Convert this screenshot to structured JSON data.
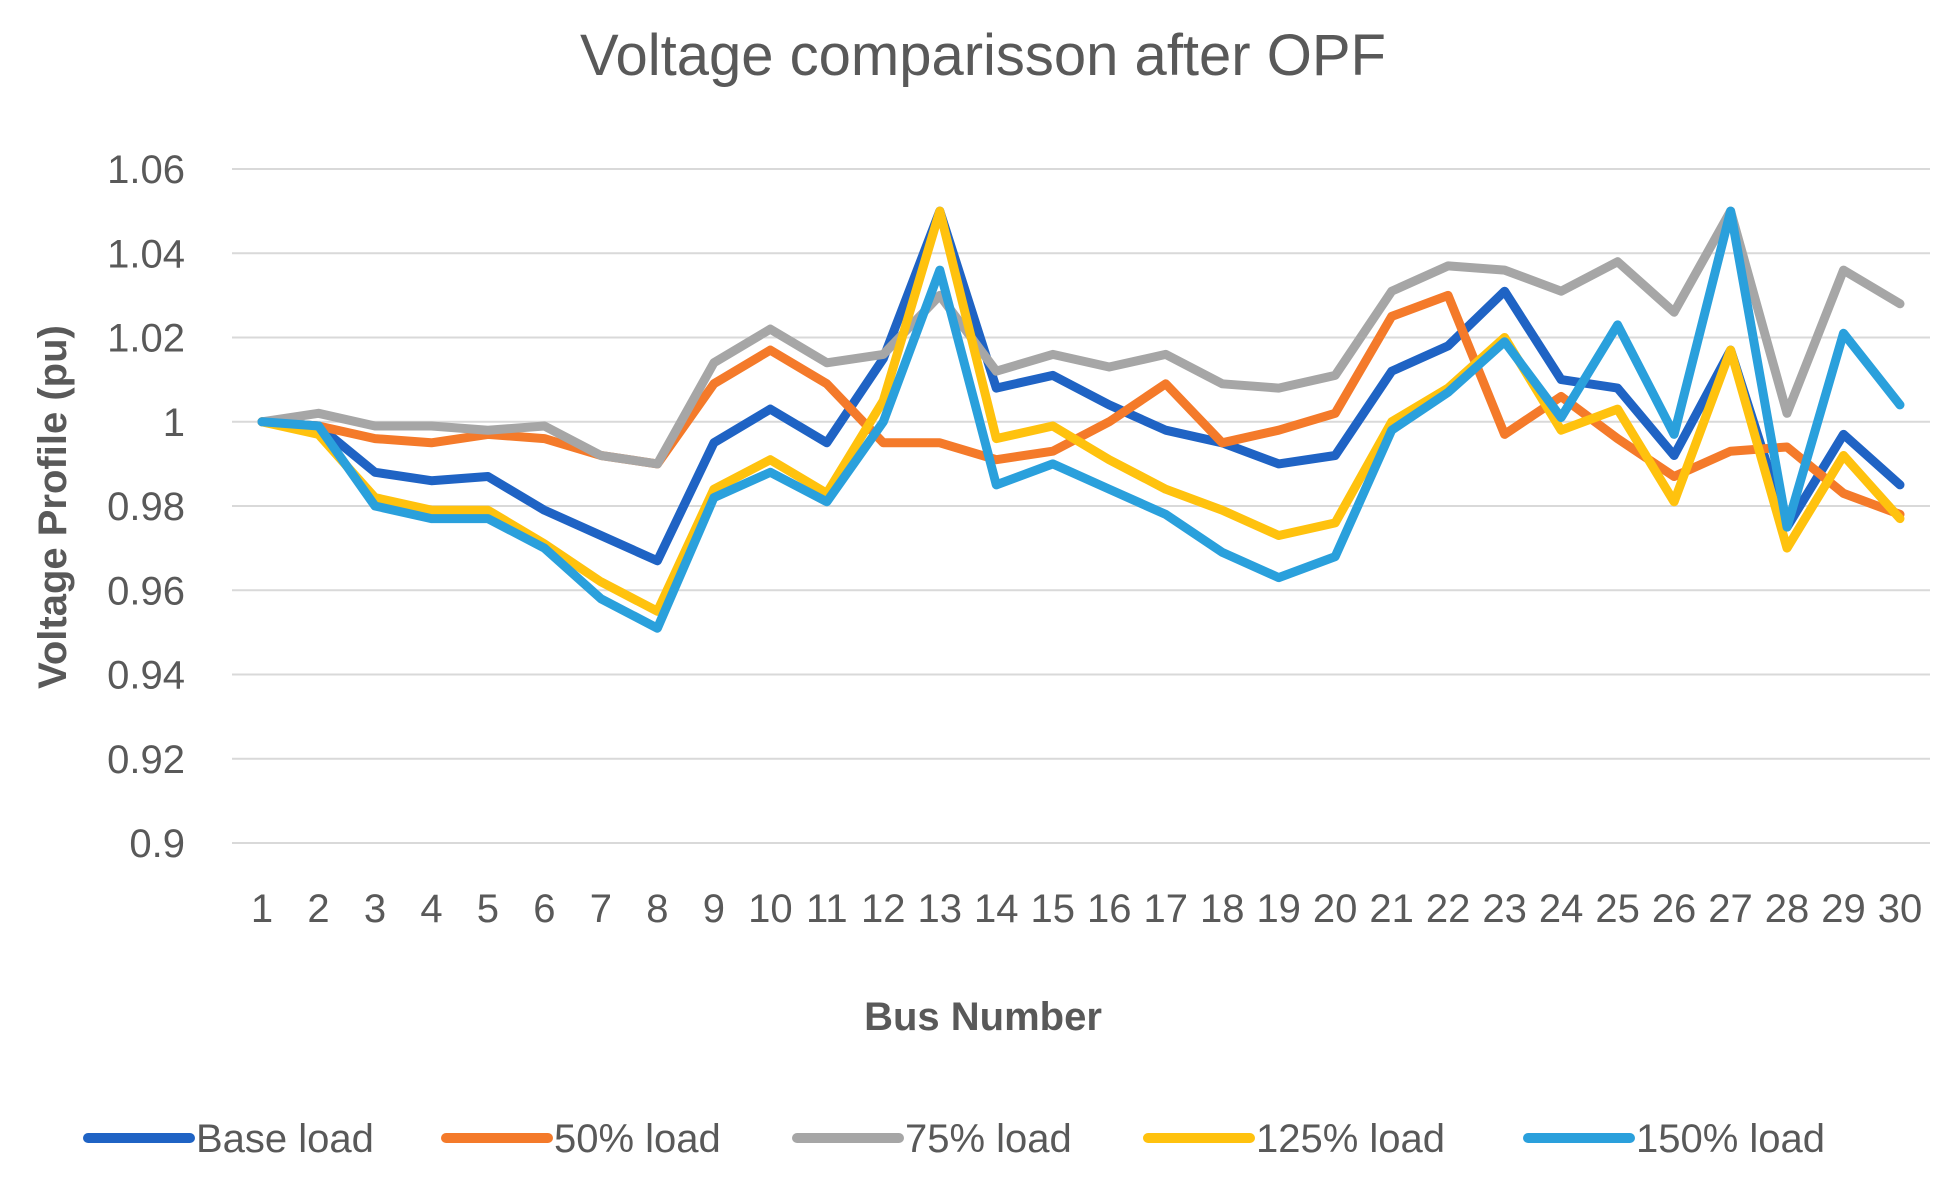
{
  "chart_data": {
    "type": "line",
    "title": "Voltage comparisson after OPF",
    "xlabel": "Bus Number",
    "ylabel": "Voltage Profile (pu)",
    "ylim": [
      0.9,
      1.06
    ],
    "y_ticks": [
      0.9,
      0.92,
      0.94,
      0.96,
      0.98,
      1,
      1.02,
      1.04,
      1.06
    ],
    "y_tick_labels": [
      "0.9",
      "0.92",
      "0.94",
      "0.96",
      "0.98",
      "1",
      "1.02",
      "1.04",
      "1.06"
    ],
    "categories": [
      "1",
      "2",
      "3",
      "4",
      "5",
      "6",
      "7",
      "8",
      "9",
      "10",
      "11",
      "12",
      "13",
      "14",
      "15",
      "16",
      "17",
      "18",
      "19",
      "20",
      "21",
      "22",
      "23",
      "24",
      "25",
      "26",
      "27",
      "28",
      "29",
      "30"
    ],
    "grid": true,
    "legend_position": "bottom",
    "series": [
      {
        "name": "Base load",
        "color": "#1f63c4",
        "values": [
          1.0,
          0.999,
          0.988,
          0.986,
          0.987,
          0.979,
          0.973,
          0.967,
          0.995,
          1.003,
          0.995,
          1.015,
          1.05,
          1.008,
          1.011,
          1.004,
          0.998,
          0.995,
          0.99,
          0.992,
          1.012,
          1.018,
          1.031,
          1.01,
          1.008,
          0.992,
          1.017,
          0.975,
          0.997,
          0.985
        ]
      },
      {
        "name": "50% load",
        "color": "#f47a2a",
        "values": [
          1.0,
          0.999,
          0.996,
          0.995,
          0.997,
          0.996,
          0.992,
          0.99,
          1.009,
          1.017,
          1.009,
          0.995,
          0.995,
          0.991,
          0.993,
          1.0,
          1.009,
          0.995,
          0.998,
          1.002,
          1.025,
          1.03,
          0.997,
          1.006,
          0.996,
          0.987,
          0.993,
          0.994,
          0.983,
          0.978
        ]
      },
      {
        "name": "75% load",
        "color": "#a6a6a6",
        "values": [
          1.0,
          1.002,
          0.999,
          0.999,
          0.998,
          0.999,
          0.992,
          0.99,
          1.014,
          1.022,
          1.014,
          1.016,
          1.03,
          1.012,
          1.016,
          1.013,
          1.016,
          1.009,
          1.008,
          1.011,
          1.031,
          1.037,
          1.036,
          1.031,
          1.038,
          1.026,
          1.05,
          1.002,
          1.036,
          1.028
        ]
      },
      {
        "name": "125% load",
        "color": "#ffc20e",
        "values": [
          1.0,
          0.997,
          0.982,
          0.979,
          0.979,
          0.971,
          0.962,
          0.955,
          0.984,
          0.991,
          0.983,
          1.005,
          1.05,
          0.996,
          0.999,
          0.991,
          0.984,
          0.979,
          0.973,
          0.976,
          1.0,
          1.008,
          1.02,
          0.998,
          1.003,
          0.981,
          1.017,
          0.97,
          0.992,
          0.977
        ]
      },
      {
        "name": "150% load",
        "color": "#2aa0dc",
        "values": [
          1.0,
          0.999,
          0.98,
          0.977,
          0.977,
          0.97,
          0.958,
          0.951,
          0.982,
          0.988,
          0.981,
          1.0,
          1.036,
          0.985,
          0.99,
          0.984,
          0.978,
          0.969,
          0.963,
          0.968,
          0.998,
          1.007,
          1.019,
          1.001,
          1.023,
          0.997,
          1.05,
          0.975,
          1.021,
          1.004
        ]
      }
    ]
  }
}
